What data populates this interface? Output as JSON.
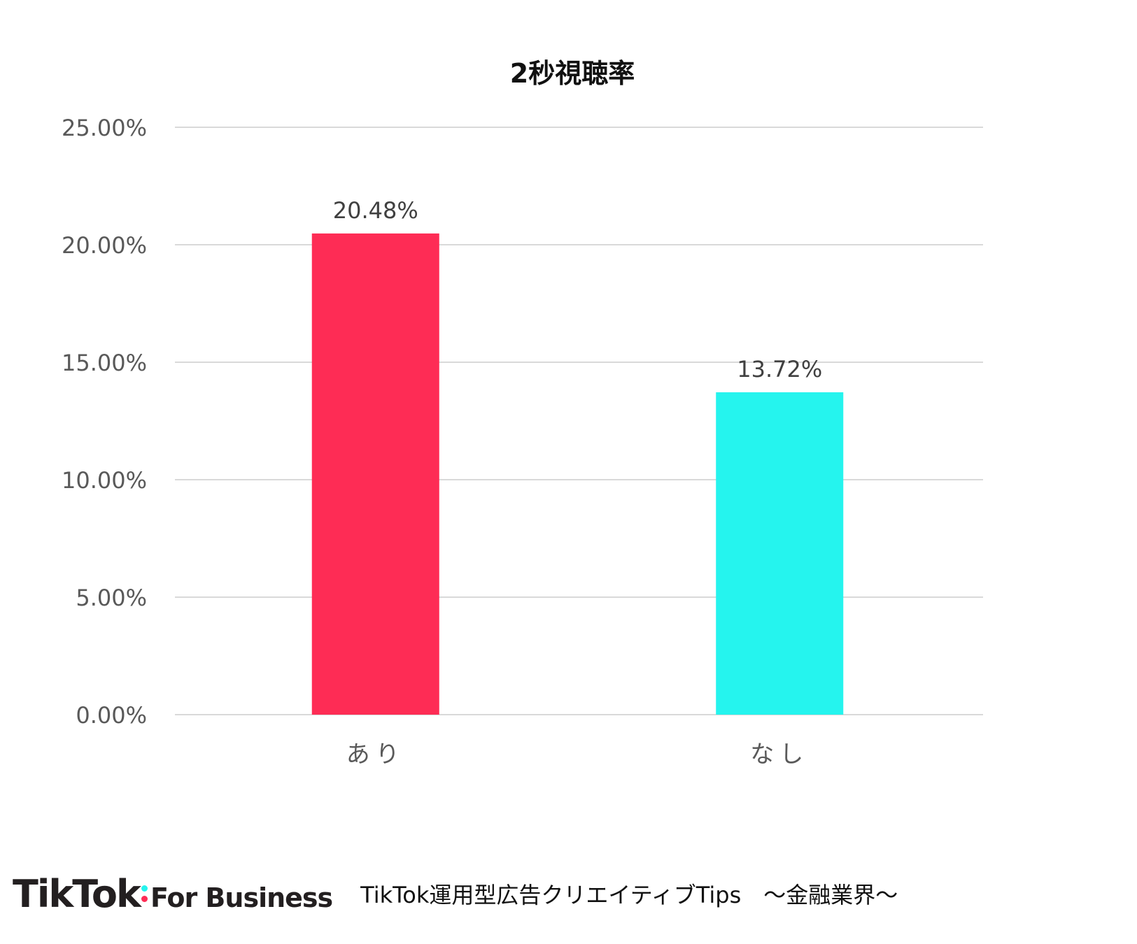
{
  "chart_data": {
    "type": "bar",
    "title": "2秒視聴率",
    "categories": [
      "あり",
      "なし"
    ],
    "values": [
      20.48,
      13.72
    ],
    "data_labels": [
      "20.48%",
      "13.72%"
    ],
    "bar_colors": [
      "#fe2c55",
      "#25f4ee"
    ],
    "ylim": [
      0,
      25
    ],
    "yticks": [
      0,
      5,
      10,
      15,
      20,
      25
    ],
    "ytick_labels": [
      "0.00%",
      "5.00%",
      "10.00%",
      "15.00%",
      "20.00%",
      "25.00%"
    ],
    "grid": true,
    "legend": "none"
  },
  "footer": {
    "brand_main": "TikTok",
    "brand_sub": "For Business",
    "caption": "TikTok運用型広告クリエイティブTips　～金融業界～",
    "colon_colors": [
      "#25f4ee",
      "#fe2c55"
    ]
  }
}
